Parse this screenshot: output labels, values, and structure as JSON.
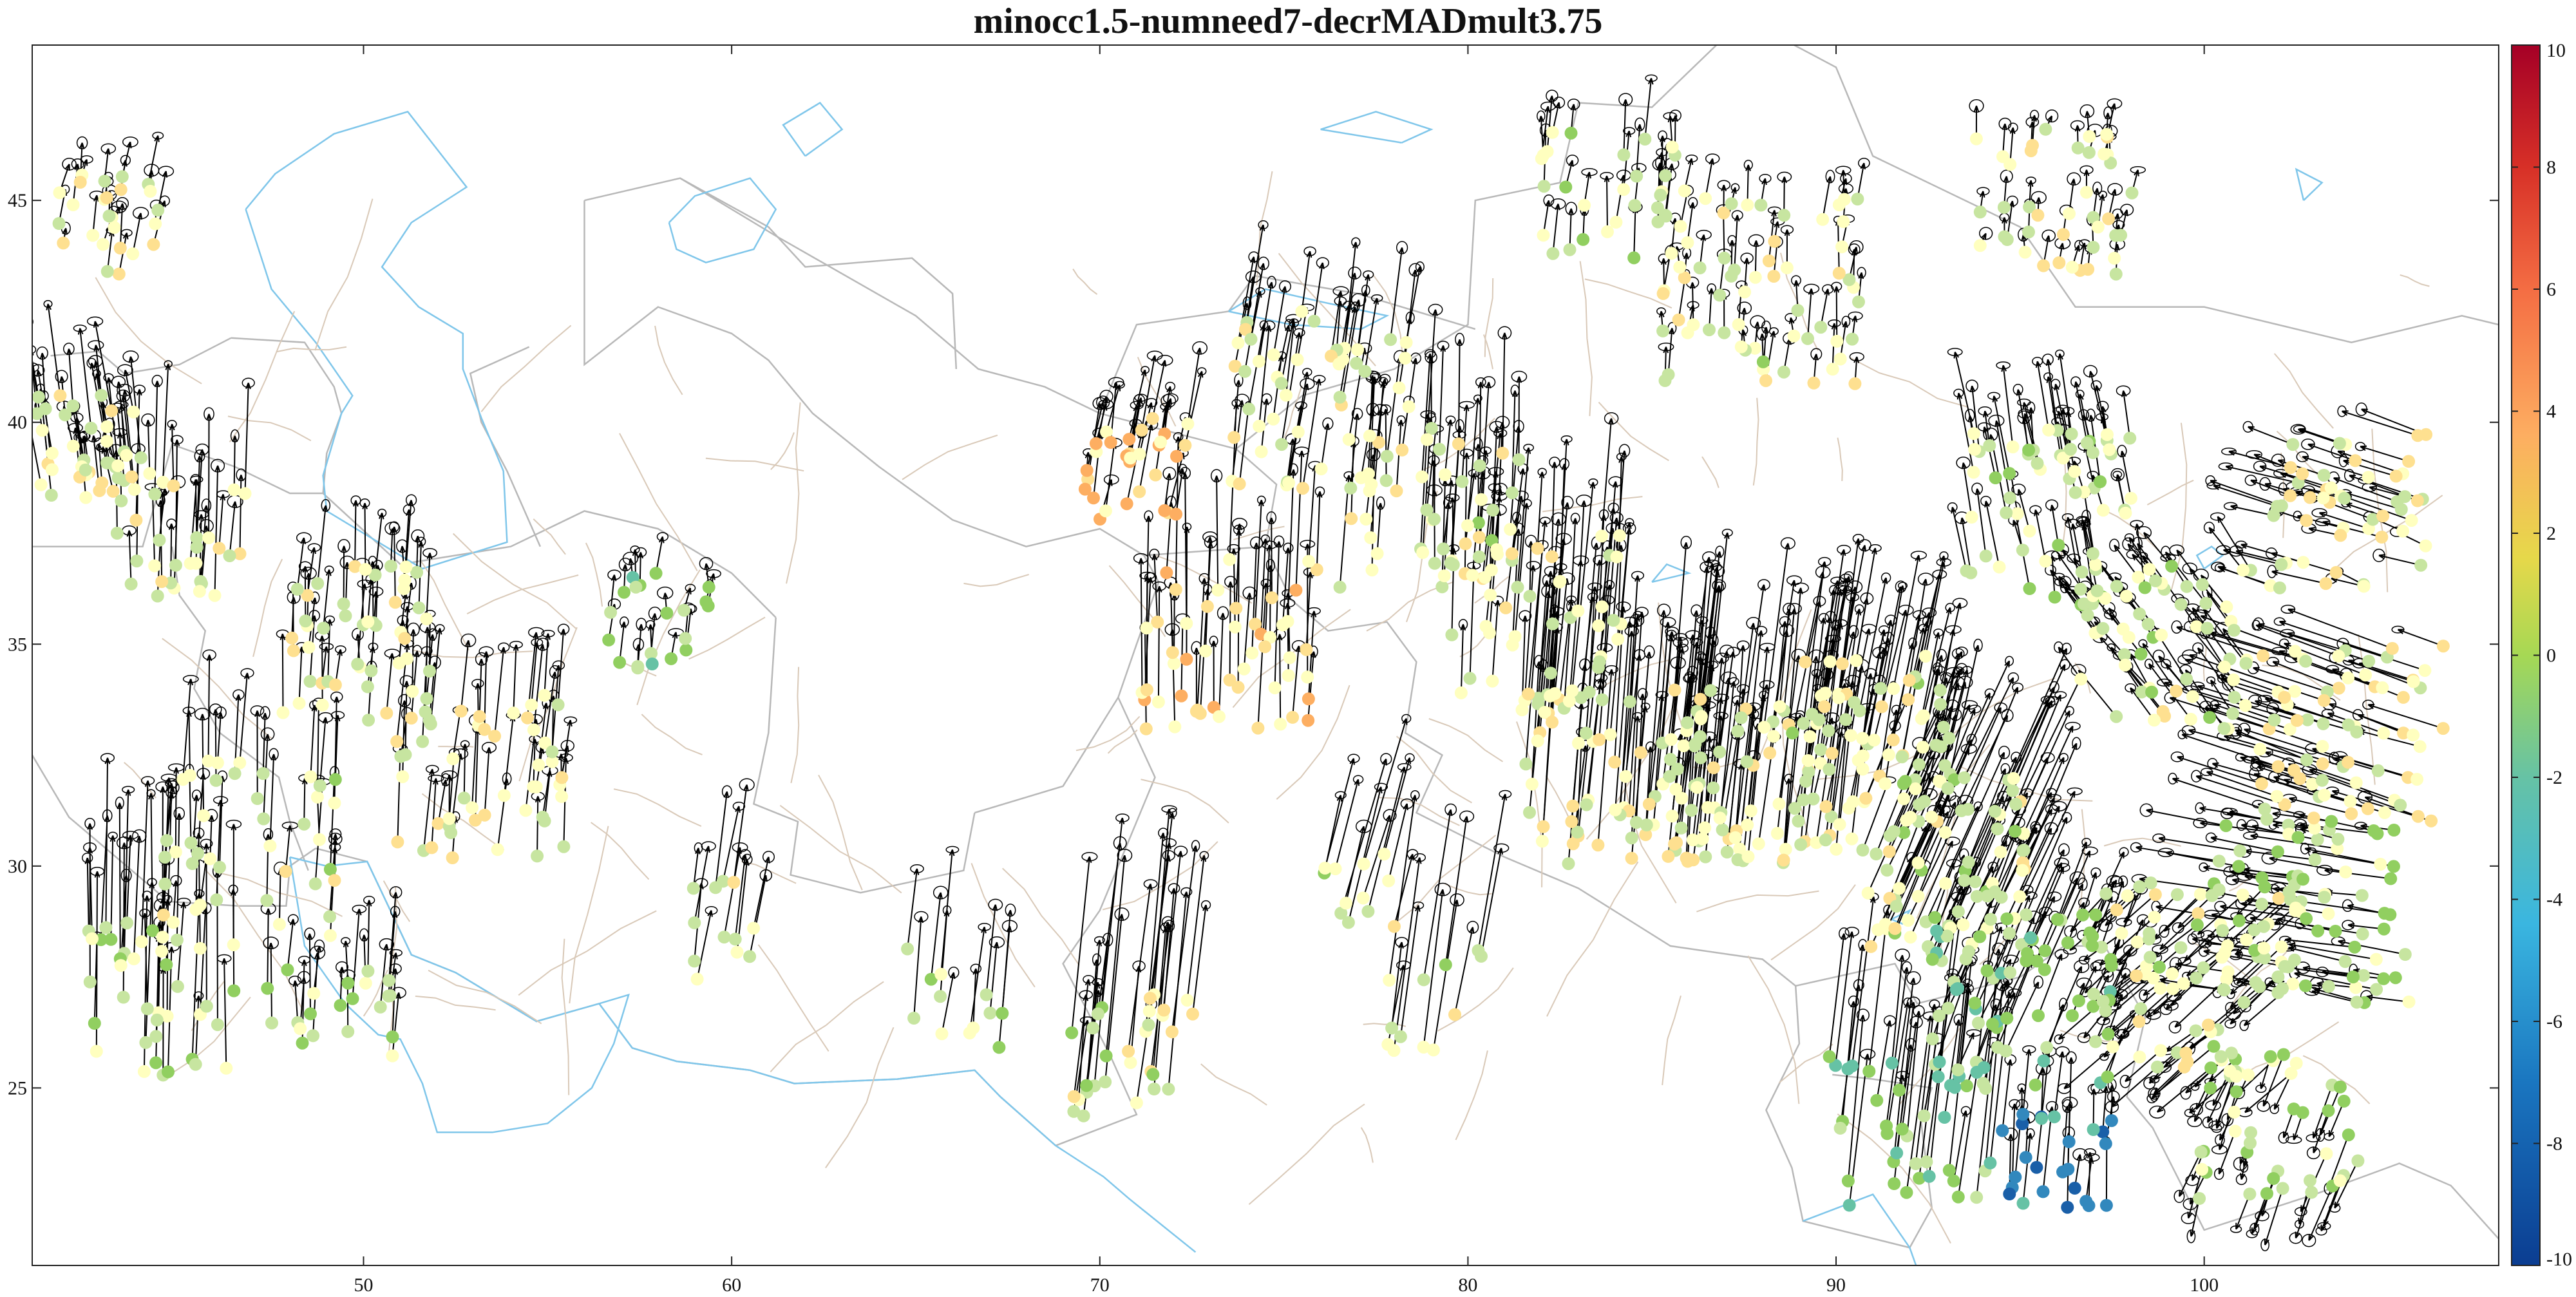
{
  "title": "minocc1.5-numneed7-decrMADmult3.75",
  "map": {
    "lon_range": [
      41,
      108
    ],
    "lat_range": [
      21,
      48.5
    ],
    "x_ticks": [
      "50",
      "60",
      "70",
      "80",
      "90",
      "100"
    ],
    "y_ticks": [
      "25",
      "30",
      "35",
      "40",
      "45"
    ],
    "colors": {
      "country_border": "#b8b8b8",
      "coastline": "#7fc6ea",
      "faults": "#d9c9b8",
      "arrows": "#000000"
    },
    "layers": [
      "country-borders",
      "coastlines",
      "faults",
      "station-markers",
      "velocity-vectors",
      "error-ellipses"
    ]
  },
  "colorbar": {
    "range": [
      -10,
      10
    ],
    "ticks": [
      "10",
      "8",
      "6",
      "4",
      "2",
      "0",
      "-2",
      "-4",
      "-6",
      "-8",
      "-10"
    ],
    "colormap": [
      "#a50026",
      "#d73027",
      "#f46d43",
      "#fdae61",
      "#fee090",
      "#ffffbf",
      "#c7e5a0",
      "#91cf60",
      "#66c2a5",
      "#3288bd",
      "#1a5fa8",
      "#0b3d91"
    ]
  }
}
